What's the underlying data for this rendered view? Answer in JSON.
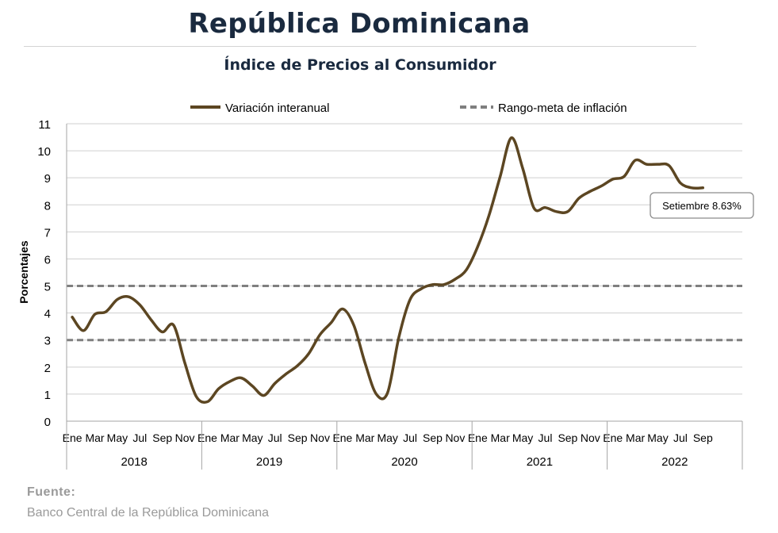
{
  "header": {
    "title": "República Dominicana",
    "subtitle": "Índice de Precios al Consumidor"
  },
  "footer": {
    "source_label": "Fuente:",
    "source_text": "Banco Central de la República Dominicana"
  },
  "colors": {
    "series_line": "#5c4622",
    "target_band": "#7f7f7f",
    "grid": "#cfcfcf",
    "text": "#000000"
  },
  "chart_data": {
    "type": "line",
    "ylabel": "Porcentajes",
    "ylim": [
      0,
      11
    ],
    "yticks": [
      "0",
      "1",
      "2",
      "3",
      "4",
      "5",
      "6",
      "7",
      "8",
      "9",
      "10",
      "11"
    ],
    "grid": true,
    "legend": {
      "placement": "top",
      "entries": [
        "Variación interanual",
        "Rango-meta de inflación"
      ]
    },
    "month_tick_labels": [
      "Ene",
      "Mar",
      "May",
      "Jul",
      "Sep",
      "Nov"
    ],
    "month_tick_labels_last_year": [
      "Ene",
      "Mar",
      "May",
      "Jul",
      "Sep"
    ],
    "years": [
      "2018",
      "2019",
      "2020",
      "2021",
      "2022"
    ],
    "series": [
      {
        "name": "Variación interanual",
        "x": [
          "2018-01",
          "2018-02",
          "2018-03",
          "2018-04",
          "2018-05",
          "2018-06",
          "2018-07",
          "2018-08",
          "2018-09",
          "2018-10",
          "2018-11",
          "2018-12",
          "2019-01",
          "2019-02",
          "2019-03",
          "2019-04",
          "2019-05",
          "2019-06",
          "2019-07",
          "2019-08",
          "2019-09",
          "2019-10",
          "2019-11",
          "2019-12",
          "2020-01",
          "2020-02",
          "2020-03",
          "2020-04",
          "2020-05",
          "2020-06",
          "2020-07",
          "2020-08",
          "2020-09",
          "2020-10",
          "2020-11",
          "2020-12",
          "2021-01",
          "2021-02",
          "2021-03",
          "2021-04",
          "2021-05",
          "2021-06",
          "2021-07",
          "2021-08",
          "2021-09",
          "2021-10",
          "2021-11",
          "2021-12",
          "2022-01",
          "2022-02",
          "2022-03",
          "2022-04",
          "2022-05",
          "2022-06",
          "2022-07",
          "2022-08",
          "2022-09"
        ],
        "values": [
          3.85,
          3.35,
          3.95,
          4.05,
          4.5,
          4.6,
          4.3,
          3.75,
          3.3,
          3.55,
          2.15,
          0.92,
          0.72,
          1.2,
          1.47,
          1.6,
          1.3,
          0.95,
          1.4,
          1.75,
          2.05,
          2.5,
          3.2,
          3.65,
          4.15,
          3.55,
          2.15,
          1.0,
          1.05,
          3.1,
          4.5,
          4.9,
          5.05,
          5.05,
          5.25,
          5.6,
          6.45,
          7.6,
          9.05,
          10.48,
          9.35,
          7.88,
          7.9,
          7.75,
          7.75,
          8.25,
          8.5,
          8.7,
          8.95,
          9.05,
          9.65,
          9.5,
          9.5,
          9.45,
          8.81,
          8.63,
          8.63
        ]
      },
      {
        "name": "Rango-meta de inflación",
        "values_lower": 3,
        "values_upper": 5
      }
    ],
    "annotation": "Setiembre 8.63%"
  }
}
